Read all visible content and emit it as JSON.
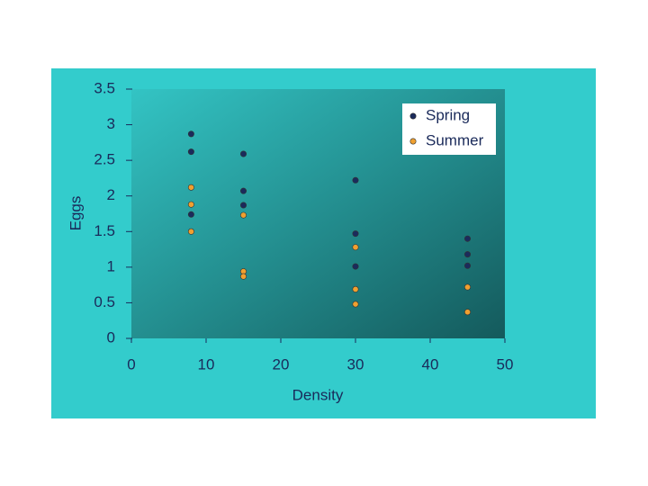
{
  "chart_data": {
    "type": "scatter",
    "x_label": "Density",
    "y_label": "Eggs",
    "xlim": [
      0,
      50
    ],
    "xticks": [
      0,
      10,
      20,
      30,
      40,
      50
    ],
    "ylim": [
      0,
      3.5
    ],
    "yticks": [
      0,
      0.5,
      1,
      1.5,
      2,
      2.5,
      3,
      3.5
    ],
    "legend": "upper right",
    "series": [
      {
        "name": "Spring",
        "color": "#1b2b5c",
        "x": [
          8,
          8,
          8,
          15,
          15,
          15,
          30,
          30,
          30,
          45,
          45,
          45
        ],
        "values": [
          2.87,
          2.62,
          1.74,
          2.59,
          2.07,
          1.87,
          2.22,
          1.47,
          1.01,
          1.4,
          1.18,
          1.02
        ]
      },
      {
        "name": "Summer",
        "color": "#f0a030",
        "x": [
          8,
          8,
          8,
          15,
          15,
          15,
          30,
          30,
          30,
          45,
          45
        ],
        "values": [
          2.12,
          1.88,
          1.5,
          1.73,
          0.94,
          0.87,
          1.28,
          0.69,
          0.48,
          0.72,
          0.37
        ]
      }
    ]
  }
}
